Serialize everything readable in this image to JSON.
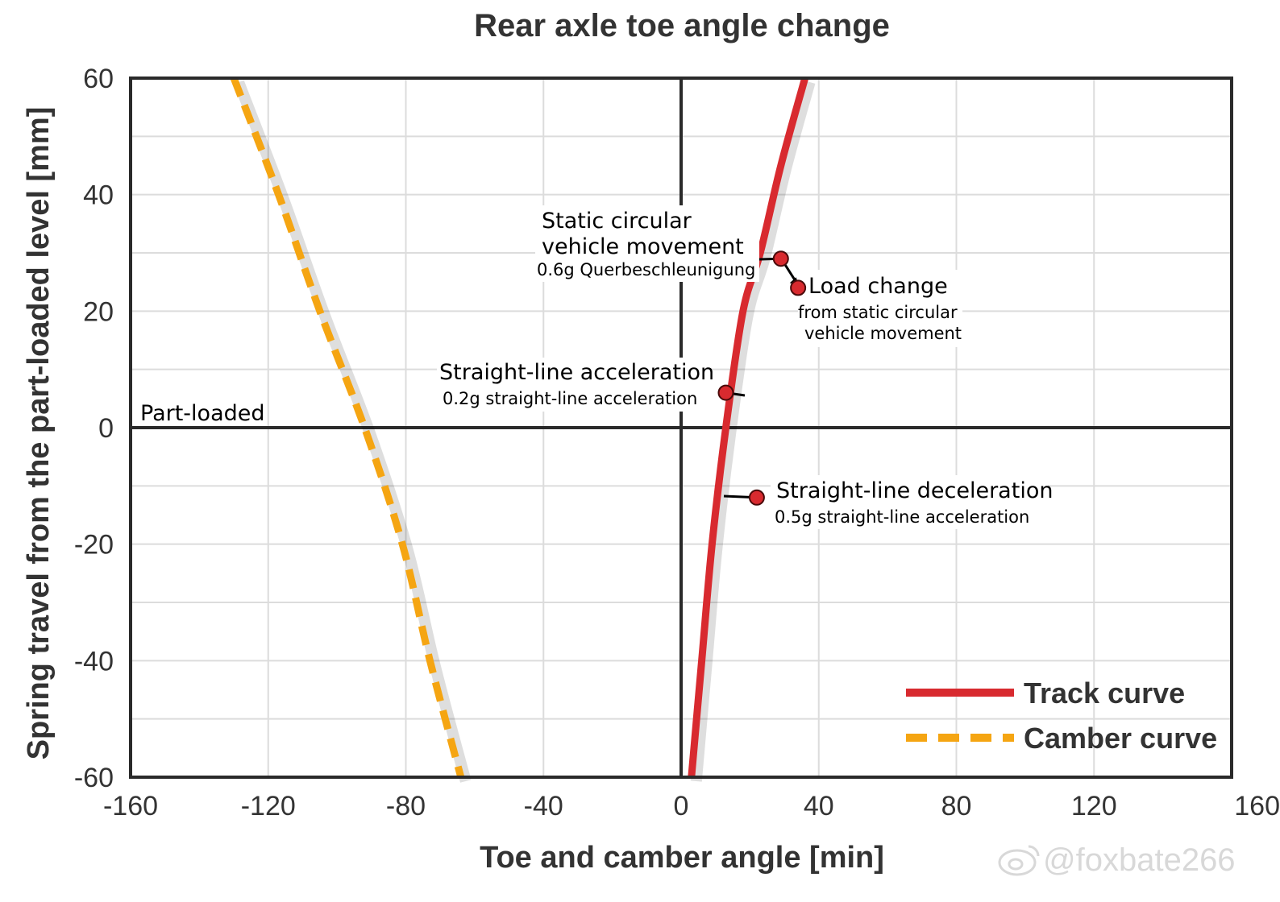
{
  "chart_data": {
    "type": "line",
    "title": "Rear axle toe angle change",
    "xlabel": "Toe and camber angle [min]",
    "ylabel": "Spring travel from the part-loaded level [mm]",
    "xlim": [
      -160,
      160
    ],
    "ylim": [
      -60,
      60
    ],
    "x_ticks": [
      -160,
      -120,
      -80,
      -40,
      0,
      40,
      80,
      120,
      160
    ],
    "x_tick_labels": [
      "-160",
      "-120",
      "-80",
      "-40",
      "0",
      "40",
      "80",
      "120",
      "160"
    ],
    "y_ticks": [
      60,
      40,
      20,
      0,
      -20,
      -40,
      -60
    ],
    "y_tick_labels": [
      "60",
      "40",
      "20",
      "0",
      "-20",
      "-40",
      "-60"
    ],
    "grid": true,
    "legend_position": "bottom-right",
    "series": [
      {
        "name": "Track curve",
        "style": "solid",
        "color": "#d82a2f",
        "points": [
          [
            3,
            -60
          ],
          [
            6,
            -40
          ],
          [
            9,
            -20
          ],
          [
            13,
            0
          ],
          [
            18,
            20
          ],
          [
            23,
            30
          ],
          [
            29,
            45
          ],
          [
            36,
            60
          ]
        ]
      },
      {
        "name": "Camber curve",
        "style": "dashed",
        "color": "#f5a512",
        "points": [
          [
            -130,
            60
          ],
          [
            -117,
            40
          ],
          [
            -105,
            20
          ],
          [
            -92,
            0
          ],
          [
            -81,
            -20
          ],
          [
            -73,
            -40
          ],
          [
            -64,
            -60
          ]
        ]
      }
    ],
    "reference_line_label": "Part-loaded",
    "points": [
      {
        "id": "static",
        "x": 29,
        "y": 29,
        "label": "Static circular vehicle movement",
        "label_lines": [
          "Static circular",
          "vehicle movement"
        ],
        "sublabel": "0.6g Querbeschleunigung",
        "sublabel_lines": [
          "0.6g Querbeschleunigung"
        ]
      },
      {
        "id": "load",
        "x": 34,
        "y": 24,
        "label": "Load change",
        "label_lines": [
          "Load change"
        ],
        "sublabel": "from static circular vehicle movement",
        "sublabel_lines": [
          "from static circular",
          "vehicle movement"
        ]
      },
      {
        "id": "accel",
        "x": 13,
        "y": 6,
        "label": "Straight-line acceleration",
        "label_lines": [
          "Straight-line acceleration"
        ],
        "sublabel": "0.2g straight-line acceleration",
        "sublabel_lines": [
          "0.2g straight-line acceleration"
        ]
      },
      {
        "id": "decel",
        "x": 22,
        "y": -12,
        "label": "Straight-line deceleration",
        "label_lines": [
          "Straight-line deceleration"
        ],
        "sublabel": "0.5g straight-line acceleration",
        "sublabel_lines": [
          "0.5g straight-line acceleration"
        ]
      }
    ],
    "point_color": "#d82a2f"
  },
  "watermark": {
    "text": "@foxbate266",
    "icon": "weibo-icon"
  }
}
